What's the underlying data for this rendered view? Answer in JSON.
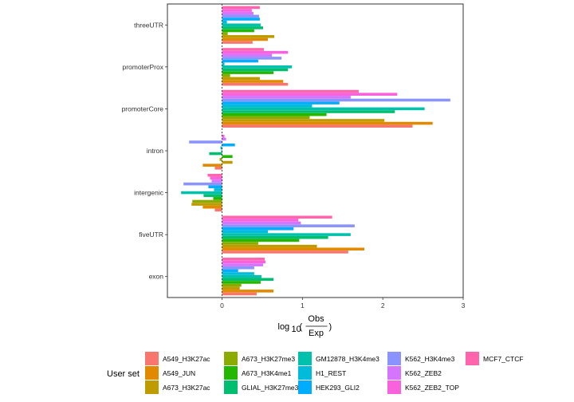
{
  "chart_data": {
    "type": "bar",
    "orientation": "horizontal",
    "xlabel": "log10(Obs/Exp)",
    "xlabel_parts": {
      "prefix": "log",
      "sub": "10",
      "numerator": "Obs",
      "denominator": "Exp"
    },
    "xlim": [
      -0.68,
      3.0
    ],
    "xticks": [
      0,
      1,
      2,
      3
    ],
    "xtick_labels": [
      "0",
      "1",
      "2",
      "3"
    ],
    "categories": [
      "exon",
      "fiveUTR",
      "intergenic",
      "intron",
      "promoterCore",
      "promoterProx",
      "threeUTR"
    ],
    "legend": {
      "title": "User set",
      "position": "bottom"
    },
    "series": [
      {
        "name": "A549_H3K27ac",
        "color": "#F8766D",
        "values": [
          0.43,
          1.57,
          -0.09,
          -0.09,
          2.37,
          0.82,
          0.38
        ]
      },
      {
        "name": "A549_JUN",
        "color": "#E18A00",
        "values": [
          0.64,
          1.77,
          -0.24,
          -0.24,
          2.62,
          0.76,
          0.57
        ]
      },
      {
        "name": "A673_H3K27ac",
        "color": "#BE9C00",
        "values": [
          0.22,
          1.18,
          -0.38,
          0.13,
          2.02,
          0.47,
          0.65
        ]
      },
      {
        "name": "A673_H3K27me3",
        "color": "#8CAB00",
        "values": [
          0.24,
          0.45,
          -0.37,
          -0.03,
          1.09,
          0.1,
          0.07
        ]
      },
      {
        "name": "A673_H3K4me1",
        "color": "#24B700",
        "values": [
          0.48,
          0.96,
          -0.11,
          0.13,
          1.3,
          0.64,
          0.4
        ]
      },
      {
        "name": "GLIAL_H3K27me3",
        "color": "#00BE70",
        "values": [
          0.64,
          1.32,
          -0.23,
          -0.16,
          2.15,
          0.82,
          0.51
        ]
      },
      {
        "name": "GM12878_H3K4me3",
        "color": "#00C1AB",
        "values": [
          0.49,
          1.6,
          -0.51,
          -0.01,
          2.52,
          0.87,
          0.48
        ]
      },
      {
        "name": "H1_REST",
        "color": "#00BBDA",
        "values": [
          0.4,
          0.57,
          -0.1,
          -0.02,
          1.12,
          0.03,
          0.06
        ]
      },
      {
        "name": "HEK293_GLI2",
        "color": "#00ACFC",
        "values": [
          0.2,
          0.89,
          -0.17,
          0.16,
          1.46,
          0.45,
          0.47
        ]
      },
      {
        "name": "K562_H3K4me3",
        "color": "#8B93FF",
        "values": [
          0.4,
          1.65,
          -0.48,
          -0.41,
          2.84,
          0.74,
          0.46
        ]
      },
      {
        "name": "K562_ZEB2",
        "color": "#D575FE",
        "values": [
          0.51,
          0.98,
          -0.13,
          0.05,
          1.6,
          0.62,
          0.39
        ]
      },
      {
        "name": "K562_ZEB2_TOP",
        "color": "#F962DD",
        "values": [
          0.54,
          0.95,
          -0.15,
          0.03,
          2.18,
          0.82,
          0.37
        ]
      },
      {
        "name": "MCF7_CTCF",
        "color": "#FF65AC",
        "values": [
          0.53,
          1.37,
          -0.18,
          0.0,
          1.7,
          0.52,
          0.47
        ]
      }
    ]
  }
}
